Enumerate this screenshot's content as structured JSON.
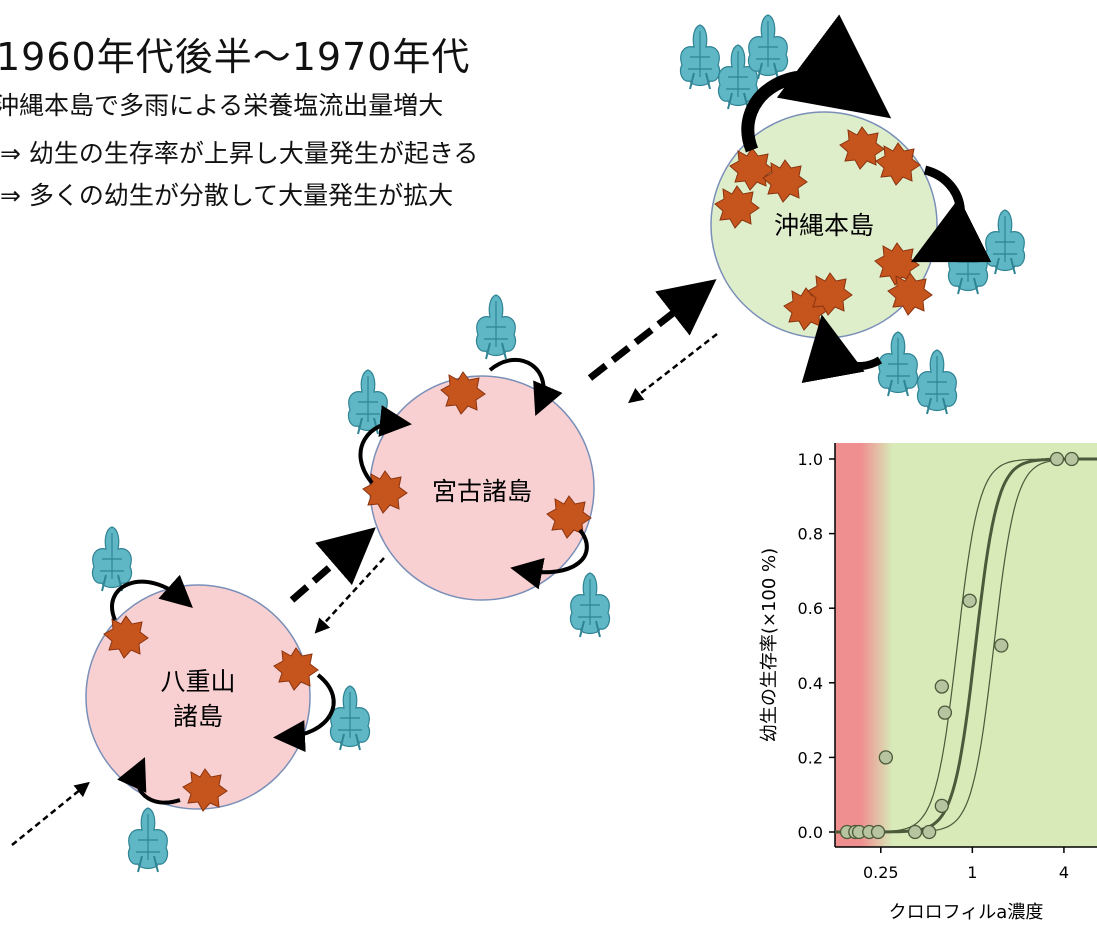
{
  "heading": {
    "title": "1960年代後半〜1970年代",
    "lines": [
      "沖縄本島で多雨による栄養塩流出量増大",
      "⇒ 幼生の生存率が上昇し大量発生が起きる",
      "⇒ 多くの幼生が分散して大量発生が拡大"
    ]
  },
  "islands": {
    "okinawa": {
      "label": "沖縄本島",
      "color": "#deeecb"
    },
    "miyako": {
      "label": "宮古諸島",
      "color": "#f8d0d2"
    },
    "yaeyama": {
      "label_line1": "八重山",
      "label_line2": "諸島",
      "color": "#f8d0d2"
    }
  },
  "colors": {
    "starfish": "#c6541d",
    "larva": "#5fb6c4",
    "arrow": "#000000"
  },
  "chart_data": {
    "type": "scatter",
    "xlabel": "クロロフィルa濃度",
    "ylabel": "幼生の生存率(×100 %)",
    "x_scale": "log",
    "x_ticks": [
      0.25,
      1,
      4
    ],
    "x_tick_labels": [
      "0.25",
      "1",
      "4"
    ],
    "y_ticks": [
      0.0,
      0.2,
      0.4,
      0.6,
      0.8,
      1.0
    ],
    "y_tick_labels": [
      "0.0",
      "0.2",
      "0.4",
      "0.6",
      "0.8",
      "1.0"
    ],
    "ylim": [
      0,
      1
    ],
    "points": [
      {
        "x": 0.15,
        "y": 0.0
      },
      {
        "x": 0.17,
        "y": 0.0
      },
      {
        "x": 0.18,
        "y": 0.0
      },
      {
        "x": 0.21,
        "y": 0.0
      },
      {
        "x": 0.24,
        "y": 0.0
      },
      {
        "x": 0.27,
        "y": 0.2
      },
      {
        "x": 0.42,
        "y": 0.0
      },
      {
        "x": 0.52,
        "y": 0.0
      },
      {
        "x": 0.63,
        "y": 0.07
      },
      {
        "x": 0.63,
        "y": 0.39
      },
      {
        "x": 0.66,
        "y": 0.32
      },
      {
        "x": 0.96,
        "y": 0.62
      },
      {
        "x": 1.55,
        "y": 0.5
      },
      {
        "x": 3.6,
        "y": 1.0
      },
      {
        "x": 4.5,
        "y": 1.0
      }
    ],
    "fit_midpoint": 1.05,
    "fit_ci_offsets": [
      -0.4,
      0.4
    ],
    "background": {
      "low": "#f08f90",
      "high": "#d7eab8"
    }
  }
}
